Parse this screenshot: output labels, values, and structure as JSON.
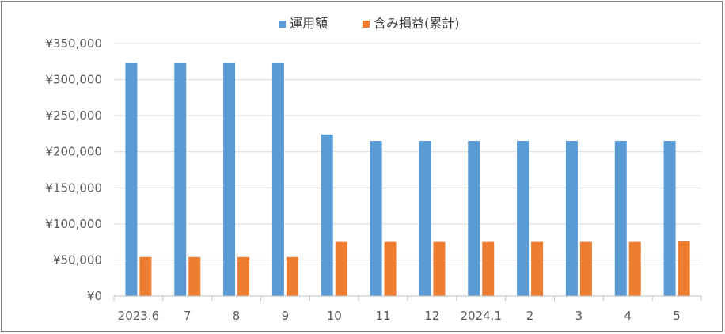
{
  "chart_data": {
    "type": "bar",
    "categories": [
      "2023.6",
      "7",
      "8",
      "9",
      "10",
      "11",
      "12",
      "2024.1",
      "2",
      "3",
      "4",
      "5"
    ],
    "series": [
      {
        "name": "運用額",
        "color": "#5b9bd5",
        "values": [
          323000,
          323000,
          323000,
          323000,
          224000,
          215000,
          215000,
          215000,
          215000,
          215000,
          215000,
          215000
        ]
      },
      {
        "name": "含み損益(累計)",
        "color": "#ed7d31",
        "values": [
          54000,
          54000,
          54000,
          54000,
          75000,
          75000,
          75000,
          75000,
          75000,
          75000,
          75000,
          76000
        ]
      }
    ],
    "ylim": [
      0,
      350000
    ],
    "yticks": [
      0,
      50000,
      100000,
      150000,
      200000,
      250000,
      300000,
      350000
    ],
    "ytick_labels": [
      "¥0",
      "¥50,000",
      "¥100,000",
      "¥150,000",
      "¥200,000",
      "¥250,000",
      "¥300,000",
      "¥350,000"
    ],
    "grid": true,
    "legend_position": "top-center",
    "gridline_color": "#d9d9d9",
    "axis_color": "#bfbfbf"
  }
}
